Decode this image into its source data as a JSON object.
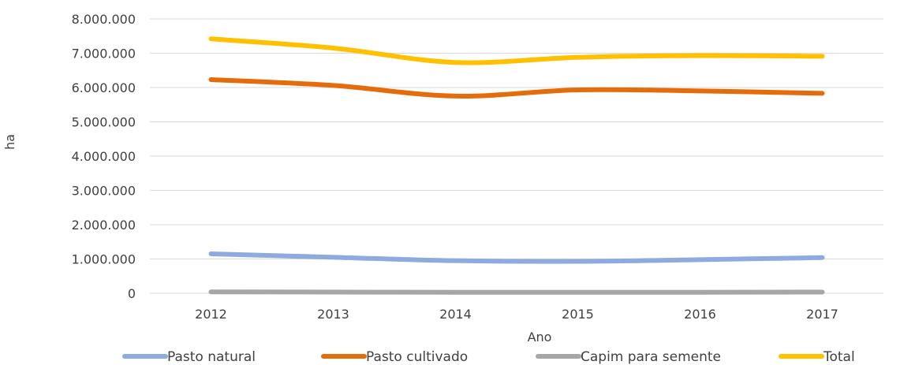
{
  "chart_data": {
    "type": "line",
    "title": "",
    "xlabel": "Ano",
    "ylabel": "ha",
    "categories": [
      "2012",
      "2013",
      "2014",
      "2015",
      "2016",
      "2017"
    ],
    "ylim": [
      0,
      8000000
    ],
    "yticks": [
      0,
      1000000,
      2000000,
      3000000,
      4000000,
      5000000,
      6000000,
      7000000,
      8000000
    ],
    "ytick_labels": [
      "0",
      "1.000.000",
      "2.000.000",
      "3.000.000",
      "4.000.000",
      "5.000.000",
      "6.000.000",
      "7.000.000",
      "8.000.000"
    ],
    "grid": true,
    "legend_position": "bottom",
    "series": [
      {
        "name": "Pasto natural",
        "color": "#8faadc",
        "values": [
          1150000,
          1050000,
          950000,
          930000,
          980000,
          1040000
        ]
      },
      {
        "name": "Pasto cultivado",
        "color": "#e46c0a",
        "values": [
          6230000,
          6060000,
          5750000,
          5930000,
          5900000,
          5830000
        ]
      },
      {
        "name": "Capim para semente",
        "color": "#a6a6a6",
        "values": [
          40000,
          35000,
          30000,
          30000,
          30000,
          35000
        ]
      },
      {
        "name": "Total",
        "color": "#ffc000",
        "values": [
          7420000,
          7150000,
          6730000,
          6880000,
          6930000,
          6910000
        ]
      }
    ]
  }
}
